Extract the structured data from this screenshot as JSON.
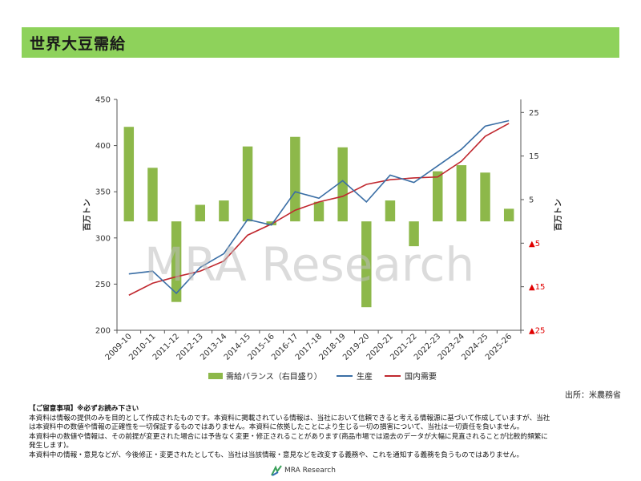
{
  "header": {
    "title": "世界大豆需給"
  },
  "chart_data": {
    "type": "bar+line",
    "title": "",
    "categories": [
      "2009-10",
      "2010-11",
      "2011-12",
      "2012-13",
      "2013-14",
      "2014-15",
      "2015-16",
      "2016-17",
      "2017-18",
      "2018-19",
      "2019-20",
      "2020-21",
      "2021-22",
      "2022-23",
      "2023-24",
      "2024-25",
      "2025-26"
    ],
    "left_axis": {
      "label": "百万トン",
      "ylim": [
        200,
        450
      ],
      "ticks": [
        200,
        250,
        300,
        350,
        400,
        450
      ]
    },
    "right_axis": {
      "label": "百万トン",
      "ylim": [
        -25,
        28
      ],
      "ticks": [
        {
          "value": 25,
          "label": "25"
        },
        {
          "value": 15,
          "label": "15"
        },
        {
          "value": 5,
          "label": "5"
        },
        {
          "value": -5,
          "label": "▲5"
        },
        {
          "value": -15,
          "label": "▲15"
        },
        {
          "value": -25,
          "label": "▲25"
        }
      ]
    },
    "grid": false,
    "legend_position": "bottom",
    "series": [
      {
        "name": "需給バランス（右目盛り）",
        "type": "bar",
        "axis": "right",
        "color": "#8db84a",
        "values": [
          21.7,
          12.3,
          -18.5,
          3.8,
          4.8,
          17.2,
          -0.9,
          19.4,
          4.5,
          17.0,
          -19.7,
          4.8,
          -5.7,
          11.5,
          12.9,
          11.2,
          2.9
        ]
      },
      {
        "name": "生産",
        "type": "line",
        "axis": "left",
        "color": "#3a6ea5",
        "values": [
          261,
          264,
          240,
          268,
          283,
          320,
          314,
          350,
          343,
          362,
          339,
          368,
          360,
          378,
          396,
          421,
          427
        ]
      },
      {
        "name": "国内需要",
        "type": "line",
        "axis": "left",
        "color": "#c0282f",
        "values": [
          238,
          251,
          258,
          264,
          275,
          303,
          315,
          330,
          339,
          345,
          358,
          363,
          365,
          366,
          383,
          410,
          424
        ]
      }
    ],
    "watermark": "MRA Research"
  },
  "source": "出所：米農務省",
  "notes": {
    "heading": "【ご留意事項】※必ずお読み下さい",
    "lines": [
      "本資料は情報の提供のみを目的として作成されたものです。本資料に掲載されている情報は、当社において信頼できると考える情報源に基づいて作成していますが、当社",
      "は本資料中の数値や情報の正確性を一切保証するものではありません。本資料に依拠したことにより生じる一切の損害について、当社は一切責任を負いません。",
      "本資料中の数値や情報は、その前提が変更された場合には予告なく変更・修正されることがあります(商品市場では過去のデータが大幅に見直されることが比較的頻繁に",
      "発生します)。",
      "本資料中の情報・意見などが、今後修正・変更されたとしても、当社は当該情報・意見などを改変する義務や、これを通知する義務を負うものではありません。"
    ]
  },
  "footer": {
    "brand": "MRA Research"
  }
}
